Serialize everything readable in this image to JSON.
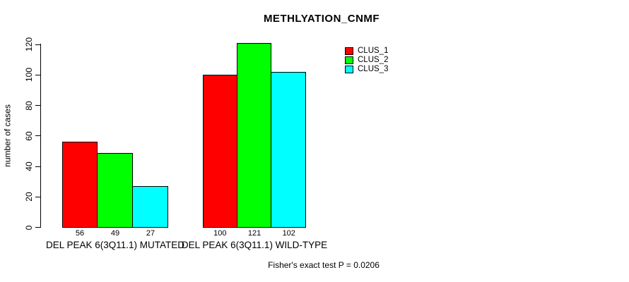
{
  "title": "METHLYATION_CNMF",
  "footnote": "Fisher's exact test P = 0.0206",
  "legend": {
    "items": [
      {
        "label": "CLUS_1",
        "color": "#FF0000"
      },
      {
        "label": "CLUS_2",
        "color": "#00FF00"
      },
      {
        "label": "CLUS_3",
        "color": "#00FFFF"
      }
    ]
  },
  "chart_data": {
    "type": "bar",
    "title": "METHLYATION_CNMF",
    "xlabel": "",
    "ylabel": "number of cases",
    "ylim": [
      0,
      120
    ],
    "yticks": [
      0,
      20,
      40,
      60,
      80,
      100,
      120
    ],
    "grid": false,
    "legend_position": "top-right",
    "categories": [
      "DEL PEAK 6(3Q11.1) MUTATED",
      "DEL PEAK 6(3Q11.1) WILD-TYPE"
    ],
    "series": [
      {
        "name": "CLUS_1",
        "color": "#FF0000",
        "values": [
          56,
          100
        ]
      },
      {
        "name": "CLUS_2",
        "color": "#00FF00",
        "values": [
          49,
          121
        ]
      },
      {
        "name": "CLUS_3",
        "color": "#00FFFF",
        "values": [
          27,
          102
        ]
      }
    ],
    "bar_value_labels": [
      [
        56,
        49,
        27
      ],
      [
        100,
        121,
        102
      ]
    ],
    "annotation": "Fisher's exact test P = 0.0206"
  }
}
